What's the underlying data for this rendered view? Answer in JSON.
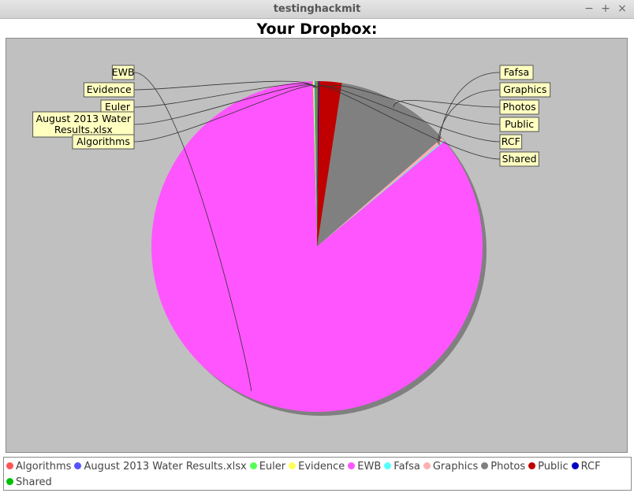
{
  "window": {
    "title": "testinghackmit",
    "minimize_label": "−",
    "maximize_label": "+",
    "close_label": "×"
  },
  "chart_data": {
    "type": "pie",
    "title": "Your Dropbox:",
    "slices": [
      {
        "label": "Algorithms",
        "value": 0.1,
        "color": "#ff5555"
      },
      {
        "label": "August 2013 Water Results.xlsx",
        "value": 0.1,
        "color": "#5555ff"
      },
      {
        "label": "Euler",
        "value": 0.1,
        "color": "#55ff55"
      },
      {
        "label": "Evidence",
        "value": 0.1,
        "color": "#ffff55"
      },
      {
        "label": "EWB",
        "value": 85.6,
        "color": "#ff55ff"
      },
      {
        "label": "Fafsa",
        "value": 0.1,
        "color": "#55ffff"
      },
      {
        "label": "Graphics",
        "value": 0.3,
        "color": "#ffafaf"
      },
      {
        "label": "Photos",
        "value": 11.2,
        "color": "#808080"
      },
      {
        "label": "Public",
        "value": 2.2,
        "color": "#c00000"
      },
      {
        "label": "RCF",
        "value": 0.1,
        "color": "#0000c0"
      },
      {
        "label": "Shared",
        "value": 0.1,
        "color": "#00c000"
      }
    ],
    "legend_position": "bottom",
    "plot_background": "#c0c0c0",
    "label_background": "#ffffc0"
  }
}
